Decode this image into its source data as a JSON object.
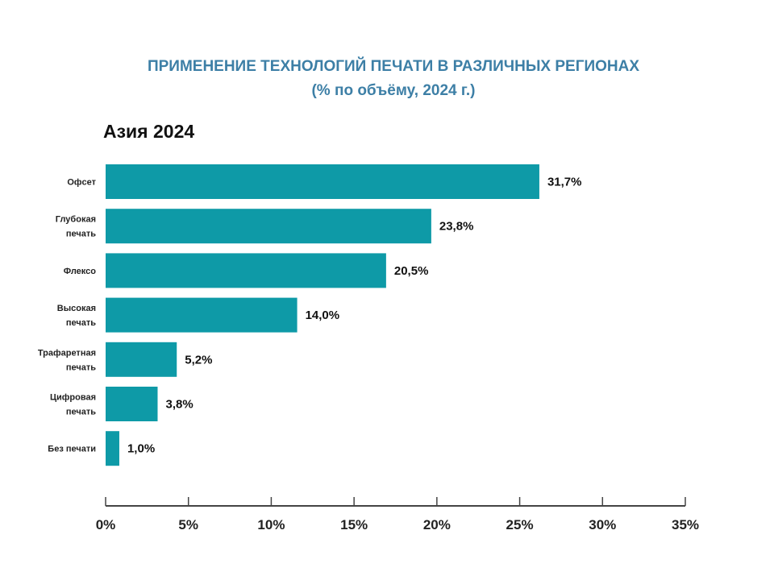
{
  "chart_data": {
    "type": "bar",
    "orientation": "horizontal",
    "title": "ПРИМЕНЕНИЕ ТЕХНОЛОГИЙ ПЕЧАТИ В РАЗЛИЧНЫХ РЕГИОНАХ",
    "title_line2": "(% по объёму, 2024 г.)",
    "subtitle": "Азия 2024",
    "categories": [
      [
        "Офсет"
      ],
      [
        "Глубокая",
        "печать"
      ],
      [
        "Флексо"
      ],
      [
        "Высокая",
        "печать"
      ],
      [
        "Трафаретная",
        "печать"
      ],
      [
        "Цифровая",
        "печать"
      ],
      [
        "Без печати"
      ]
    ],
    "values": [
      31.7,
      23.8,
      20.5,
      14.0,
      5.2,
      3.8,
      1.0
    ],
    "data_labels": [
      "31,7%",
      "23,8%",
      "20,5%",
      "14,0%",
      "5,2%",
      "3,8%",
      "1,0%"
    ],
    "x_ticks": [
      "0%",
      "5%",
      "10%",
      "15%",
      "20%",
      "25%",
      "30%",
      "35%"
    ],
    "xlim": [
      0,
      35
    ],
    "xlabel": "",
    "ylabel": "",
    "grid": false,
    "bar_color": "#0e9aa7",
    "title_color": "#3d7fa6"
  }
}
